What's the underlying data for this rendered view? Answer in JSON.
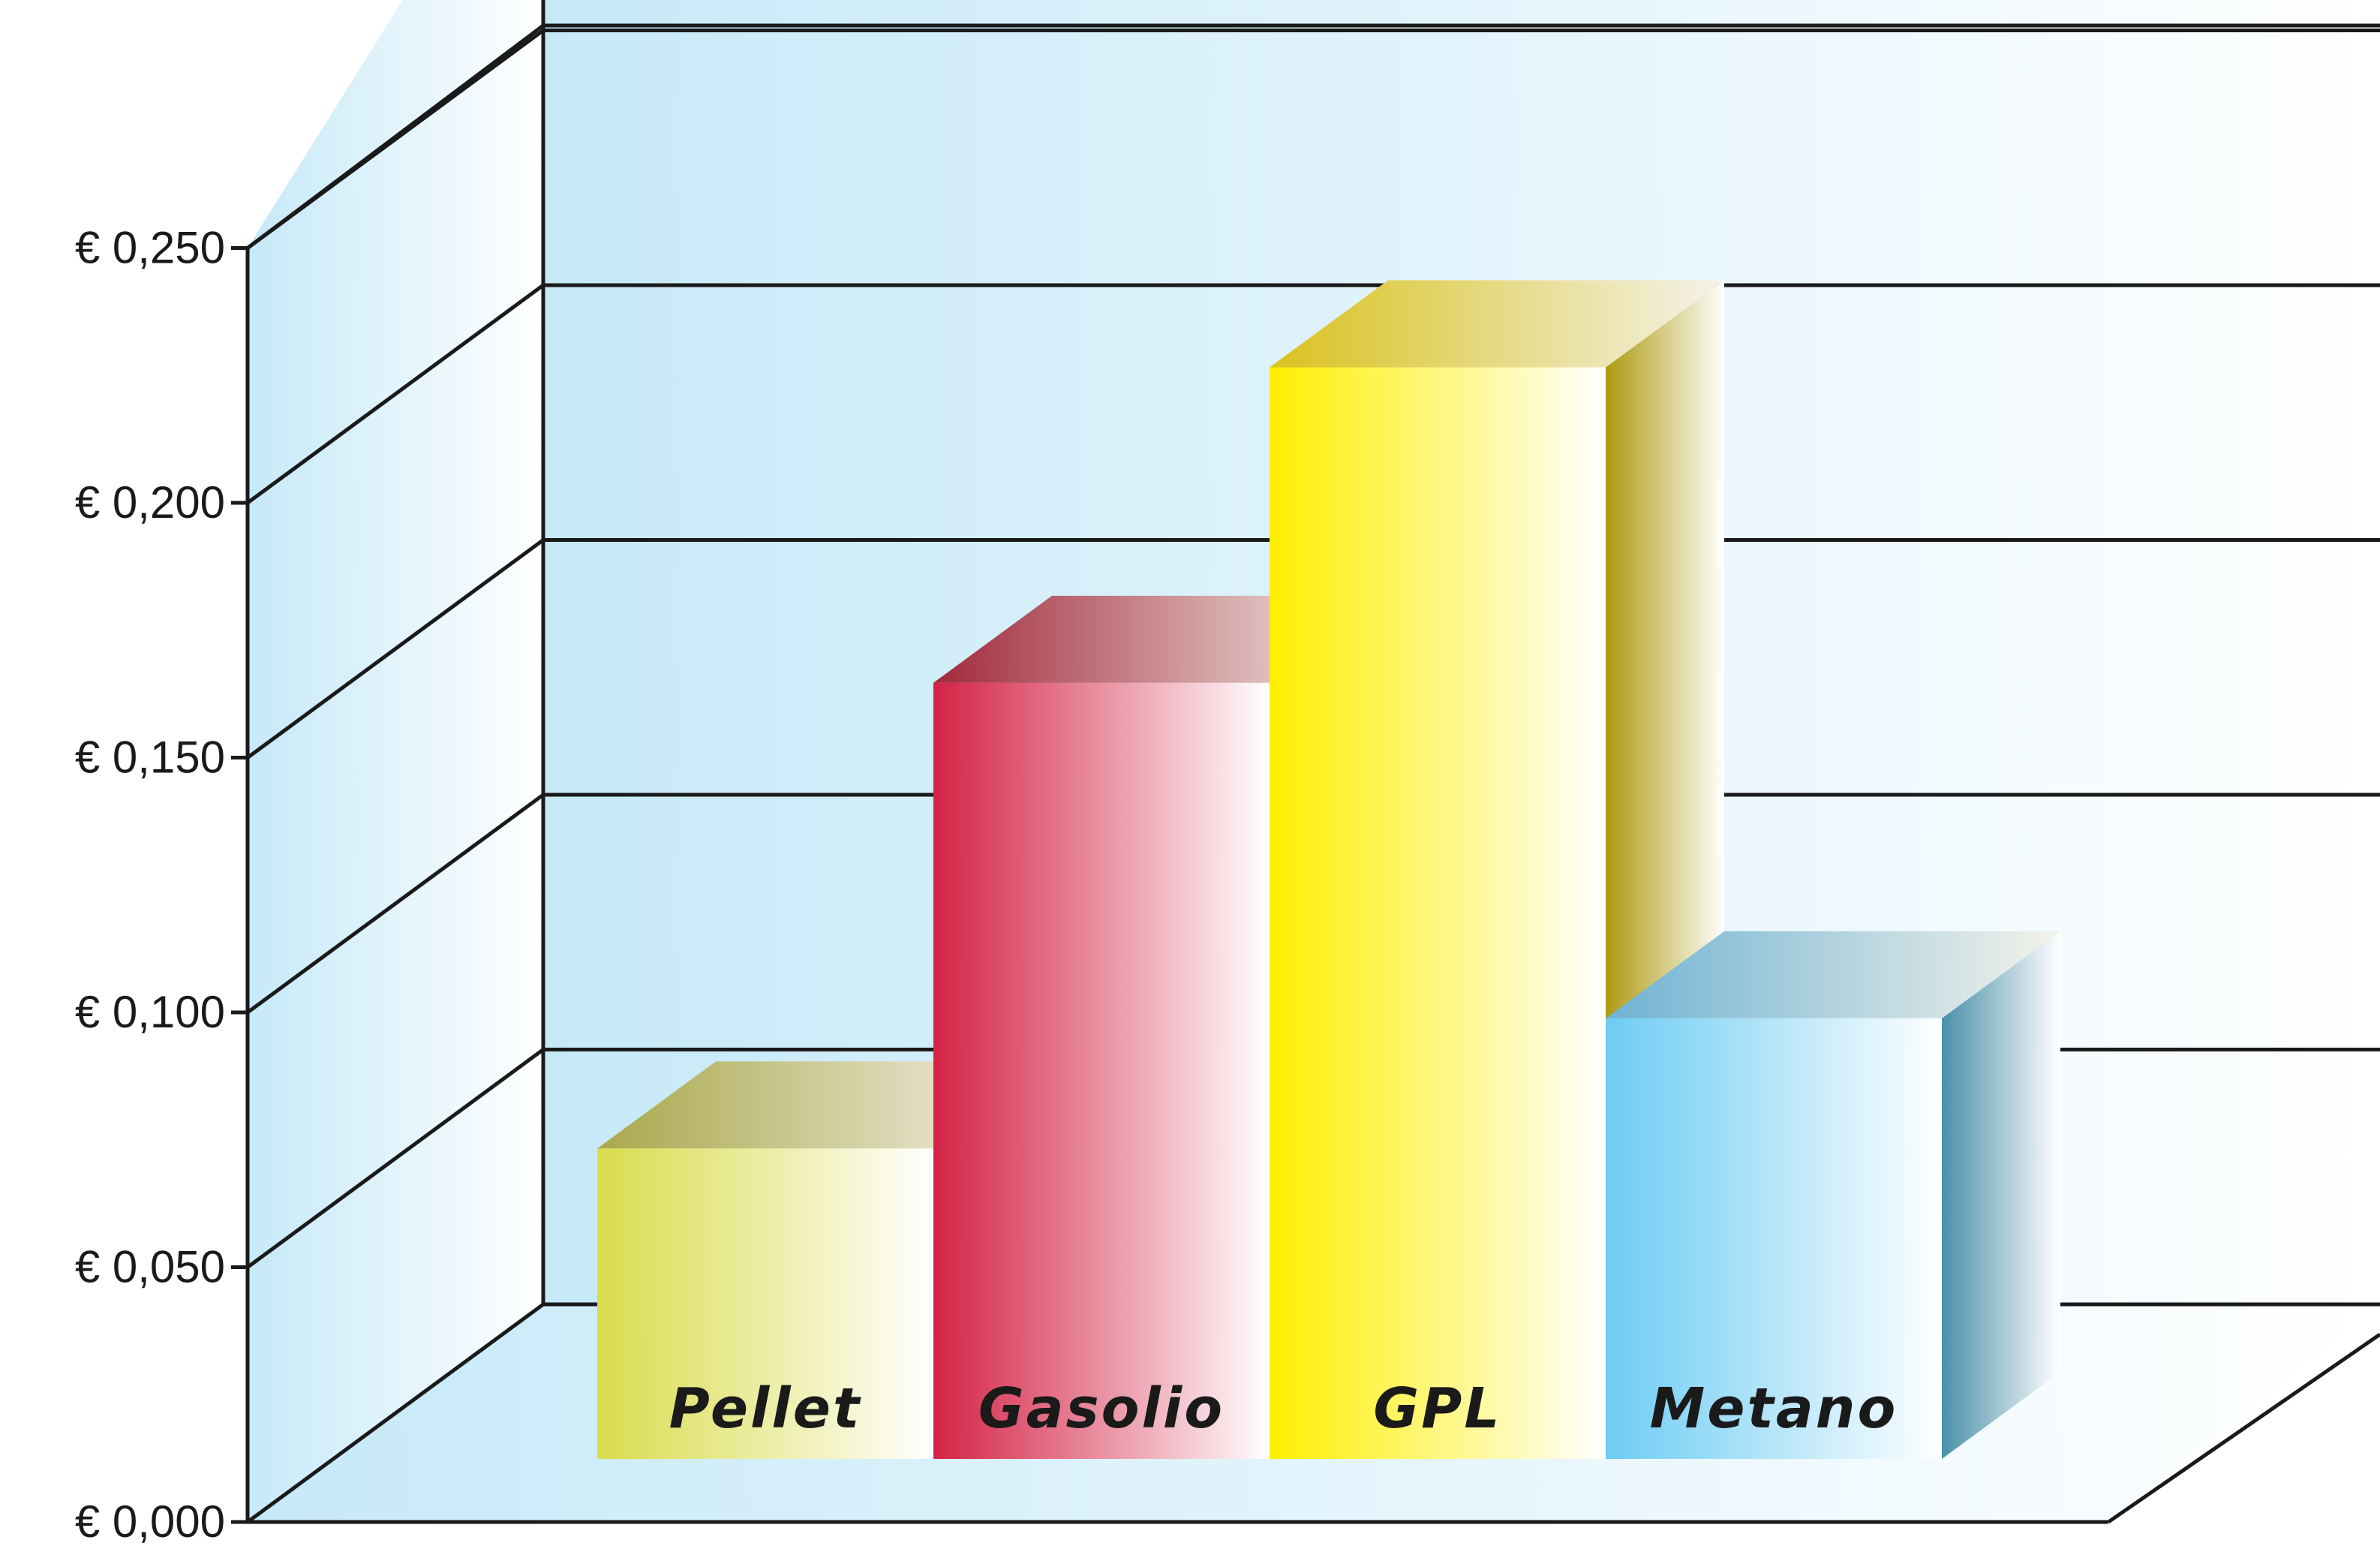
{
  "chart_data": {
    "type": "bar",
    "categories": [
      "Pellet",
      "Gasolio",
      "GPL",
      "Metano"
    ],
    "values": [
      0.062,
      0.155,
      0.218,
      0.088
    ],
    "title": "",
    "xlabel": "",
    "ylabel": "",
    "ylim": [
      0,
      0.25
    ],
    "y_ticks": [
      "€ 0,000",
      "€ 0,050",
      "€ 0,100",
      "€ 0,150",
      "€ 0,200",
      "€ 0,250"
    ],
    "grid": true,
    "legend": "none",
    "colors": {
      "Pellet": {
        "front": "#d9dc4c",
        "top": "#aaa84c",
        "side": "#9a9a30"
      },
      "Gasolio": {
        "front": "#d42245",
        "top": "#a12a3c",
        "side": "#8a1c30"
      },
      "GPL": {
        "front": "#ffef00",
        "top": "#d9c21e",
        "side": "#ad9a10"
      },
      "Metano": {
        "front": "#6dccf3",
        "top": "#6fb3d3",
        "side": "#4a90aa"
      },
      "wall": "#c6e9f8",
      "line": "#1a1a1a"
    }
  }
}
